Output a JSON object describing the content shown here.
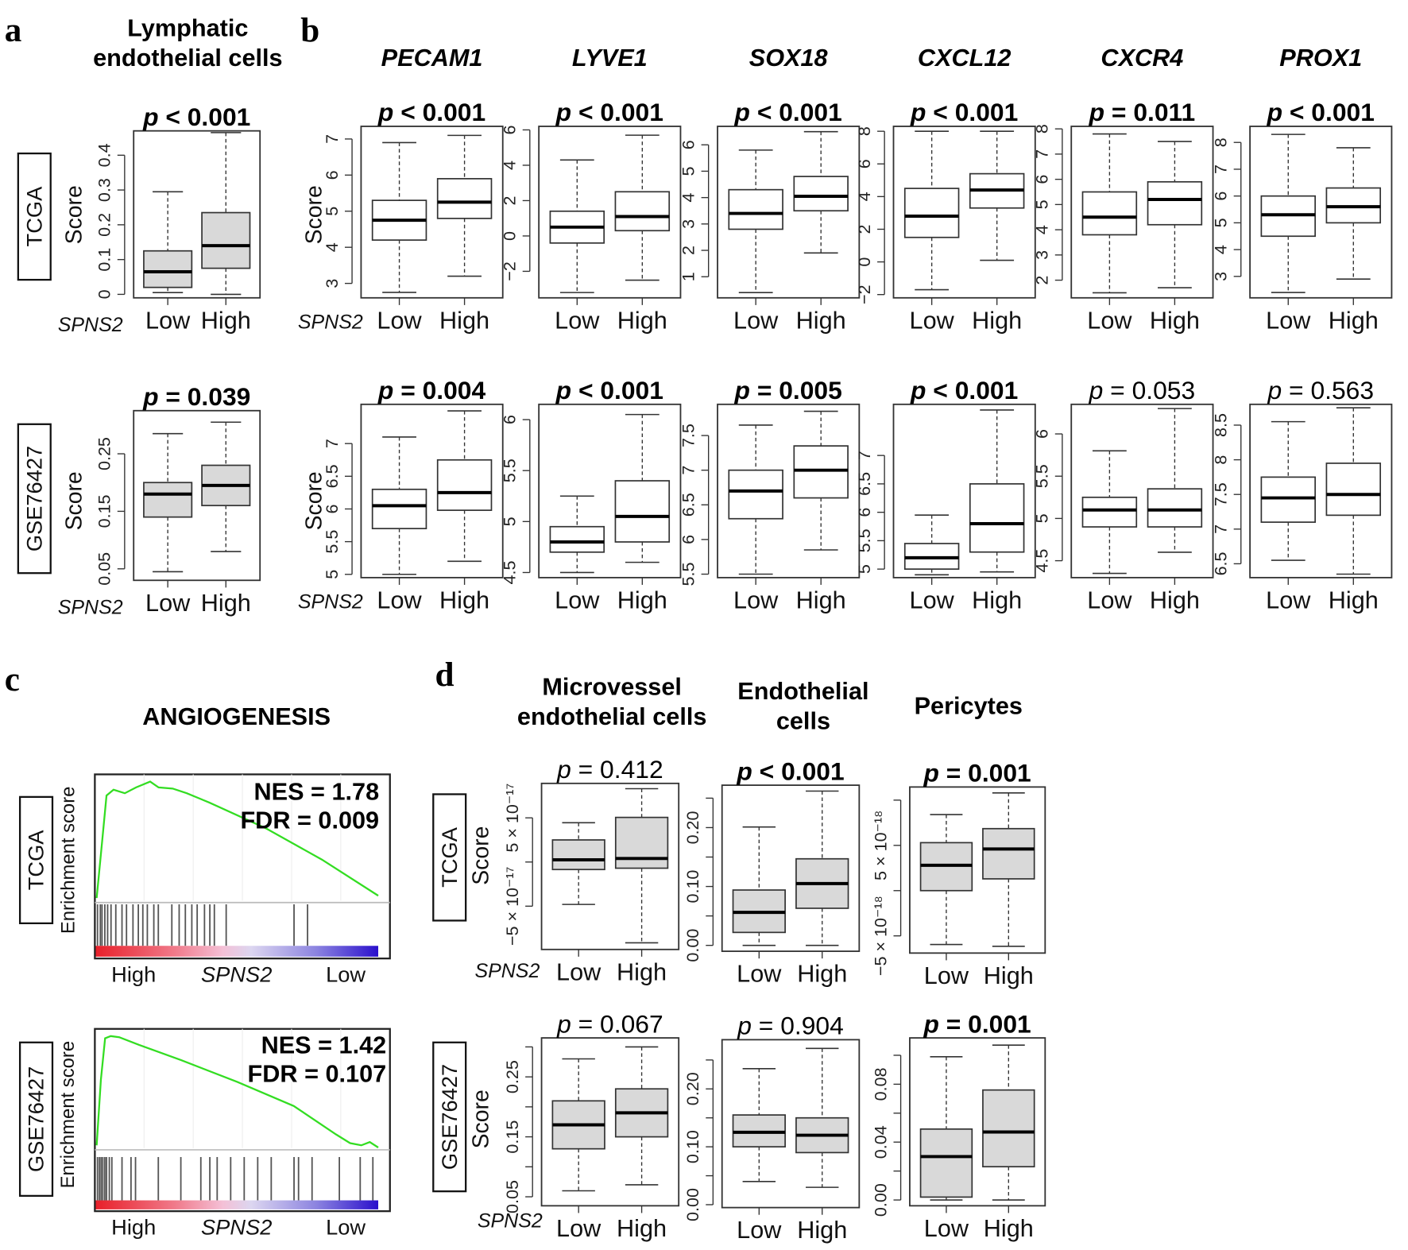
{
  "panels": {
    "a": {
      "letter": "a",
      "title": [
        "Lymphatic",
        "endothelial cells"
      ]
    },
    "b": {
      "letter": "b"
    },
    "c": {
      "letter": "c",
      "title": "ANGIOGENESIS"
    },
    "d": {
      "letter": "d",
      "titles": [
        [
          "Microvessel",
          "endothelial cells"
        ],
        [
          "Endothelial",
          "cells"
        ],
        [
          "Pericytes"
        ]
      ]
    }
  },
  "labels": {
    "datasets": [
      "TCGA",
      "GSE76427"
    ],
    "score": "Score",
    "enrichment_score": "Enrichment score",
    "group_var": "SPNS2",
    "low": "Low",
    "high": "High",
    "p": "p"
  },
  "colors": {
    "box_fill": "#d9d9d9",
    "es_line": "#33dd22",
    "gradient_high": "#e8202a",
    "gradient_low": "#2a10cc"
  },
  "gsea": [
    {
      "dataset": "TCGA",
      "nes": "NES = 1.78",
      "fdr": "FDR = 0.009",
      "es_curve": [
        [
          0,
          0
        ],
        [
          0.02,
          0.5
        ],
        [
          0.035,
          0.88
        ],
        [
          0.06,
          0.93
        ],
        [
          0.1,
          0.9
        ],
        [
          0.14,
          0.95
        ],
        [
          0.19,
          1.0
        ],
        [
          0.22,
          0.95
        ],
        [
          0.27,
          0.94
        ],
        [
          0.32,
          0.9
        ],
        [
          0.4,
          0.82
        ],
        [
          0.6,
          0.6
        ],
        [
          0.8,
          0.33
        ],
        [
          1.0,
          0.02
        ]
      ],
      "hits": [
        0.003,
        0.013,
        0.019,
        0.029,
        0.039,
        0.051,
        0.068,
        0.09,
        0.106,
        0.129,
        0.148,
        0.164,
        0.18,
        0.203,
        0.219,
        0.267,
        0.293,
        0.315,
        0.338,
        0.357,
        0.383,
        0.402,
        0.418,
        0.46,
        0.701,
        0.749
      ]
    },
    {
      "dataset": "GSE76427",
      "nes": "NES = 1.42",
      "fdr": "FDR = 0.107",
      "es_curve": [
        [
          0,
          0
        ],
        [
          0.015,
          0.6
        ],
        [
          0.03,
          0.98
        ],
        [
          0.05,
          1.0
        ],
        [
          0.08,
          0.99
        ],
        [
          0.15,
          0.92
        ],
        [
          0.3,
          0.78
        ],
        [
          0.5,
          0.58
        ],
        [
          0.7,
          0.36
        ],
        [
          0.85,
          0.1
        ],
        [
          0.9,
          0.02
        ],
        [
          0.94,
          0.0
        ],
        [
          0.97,
          0.03
        ],
        [
          1.0,
          -0.02
        ]
      ],
      "hits": [
        0.003,
        0.01,
        0.016,
        0.022,
        0.029,
        0.035,
        0.045,
        0.054,
        0.09,
        0.122,
        0.138,
        0.219,
        0.299,
        0.37,
        0.402,
        0.428,
        0.476,
        0.524,
        0.572,
        0.62,
        0.701,
        0.717,
        0.765,
        0.862,
        0.936,
        0.981
      ]
    }
  ],
  "chart_data": [
    {
      "id": "a-TCGA",
      "panel": "a",
      "title": "Lymphatic endothelial cells",
      "dataset": "TCGA",
      "type": "box",
      "p": "< 0.001",
      "bold": true,
      "ylim": [
        -0.01,
        0.47
      ],
      "yticks": [
        0,
        0.1,
        0.2,
        0.3,
        0.4
      ],
      "ytick_labels": [
        "0",
        "0.1",
        "0.2",
        "0.3",
        "0.4"
      ],
      "fill": true,
      "boxes": [
        {
          "name": "Low",
          "whislo": 0.005,
          "q1": 0.02,
          "med": 0.065,
          "q3": 0.125,
          "whishi": 0.295
        },
        {
          "name": "High",
          "whislo": 0.0,
          "q1": 0.075,
          "med": 0.14,
          "q3": 0.235,
          "whishi": 0.465
        }
      ]
    },
    {
      "id": "a-GSE",
      "panel": "a",
      "title": "Lymphatic endothelial cells",
      "dataset": "GSE76427",
      "type": "box",
      "p": "= 0.039",
      "bold": true,
      "ylim": [
        0.03,
        0.325
      ],
      "yticks": [
        0.05,
        0.15,
        0.25
      ],
      "ytick_labels": [
        "0.05",
        "0.15",
        "0.25"
      ],
      "fill": true,
      "boxes": [
        {
          "name": "Low",
          "whislo": 0.045,
          "q1": 0.14,
          "med": 0.18,
          "q3": 0.2,
          "whishi": 0.285
        },
        {
          "name": "High",
          "whislo": 0.08,
          "q1": 0.16,
          "med": 0.195,
          "q3": 0.23,
          "whishi": 0.305
        }
      ]
    },
    {
      "id": "b-PECAM1-TCGA",
      "panel": "b",
      "title": "PECAM1",
      "dataset": "TCGA",
      "type": "box",
      "p": "< 0.001",
      "bold": true,
      "ylim": [
        2.6,
        7.35
      ],
      "yticks": [
        3,
        4,
        5,
        6,
        7
      ],
      "ytick_labels": [
        "3",
        "4",
        "5",
        "6",
        "7"
      ],
      "boxes": [
        {
          "name": "Low",
          "whislo": 2.75,
          "q1": 4.2,
          "med": 4.75,
          "q3": 5.3,
          "whishi": 6.9
        },
        {
          "name": "High",
          "whislo": 3.2,
          "q1": 4.8,
          "med": 5.25,
          "q3": 5.9,
          "whishi": 7.1
        }
      ]
    },
    {
      "id": "b-LYVE1-TCGA",
      "panel": "b",
      "title": "LYVE1",
      "dataset": "TCGA",
      "type": "box",
      "p": "< 0.001",
      "bold": true,
      "ylim": [
        -3.5,
        6.2
      ],
      "yticks": [
        -2,
        0,
        2,
        4,
        6
      ],
      "ytick_labels": [
        "−2",
        "0",
        "2",
        "4",
        "6"
      ],
      "boxes": [
        {
          "name": "Low",
          "whislo": -3.2,
          "q1": -0.4,
          "med": 0.5,
          "q3": 1.4,
          "whishi": 4.3
        },
        {
          "name": "High",
          "whislo": -2.5,
          "q1": 0.3,
          "med": 1.1,
          "q3": 2.5,
          "whishi": 5.7
        }
      ]
    },
    {
      "id": "b-SOX18-TCGA",
      "panel": "b",
      "title": "SOX18",
      "dataset": "TCGA",
      "type": "box",
      "p": "< 0.001",
      "bold": true,
      "ylim": [
        0.2,
        6.7
      ],
      "yticks": [
        1,
        2,
        3,
        4,
        5,
        6
      ],
      "ytick_labels": [
        "1",
        "2",
        "3",
        "4",
        "5",
        "6"
      ],
      "boxes": [
        {
          "name": "Low",
          "whislo": 0.4,
          "q1": 2.8,
          "med": 3.4,
          "q3": 4.3,
          "whishi": 5.8
        },
        {
          "name": "High",
          "whislo": 1.9,
          "q1": 3.5,
          "med": 4.05,
          "q3": 4.8,
          "whishi": 6.5
        }
      ]
    },
    {
      "id": "b-CXCL12-TCGA",
      "panel": "b",
      "title": "CXCL12",
      "dataset": "TCGA",
      "type": "box",
      "p": "< 0.001",
      "bold": true,
      "ylim": [
        -2.2,
        8.3
      ],
      "yticks": [
        -2,
        0,
        2,
        4,
        6,
        8
      ],
      "ytick_labels": [
        "−2",
        "0",
        "2",
        "4",
        "6",
        "8"
      ],
      "boxes": [
        {
          "name": "Low",
          "whislo": -1.7,
          "q1": 1.5,
          "med": 2.8,
          "q3": 4.5,
          "whishi": 8.0
        },
        {
          "name": "High",
          "whislo": 0.1,
          "q1": 3.3,
          "med": 4.4,
          "q3": 5.4,
          "whishi": 8.0
        }
      ]
    },
    {
      "id": "b-CXCR4-TCGA",
      "panel": "b",
      "title": "CXCR4",
      "dataset": "TCGA",
      "type": "box",
      "p": "= 0.011",
      "bold": true,
      "ylim": [
        1.3,
        8.1
      ],
      "yticks": [
        2,
        3,
        4,
        5,
        6,
        7,
        8
      ],
      "ytick_labels": [
        "2",
        "3",
        "4",
        "5",
        "6",
        "7",
        "8"
      ],
      "boxes": [
        {
          "name": "Low",
          "whislo": 1.5,
          "q1": 3.8,
          "med": 4.5,
          "q3": 5.5,
          "whishi": 7.8
        },
        {
          "name": "High",
          "whislo": 1.7,
          "q1": 4.2,
          "med": 5.2,
          "q3": 5.9,
          "whishi": 7.5
        }
      ]
    },
    {
      "id": "b-PROX1-TCGA",
      "panel": "b",
      "title": "PROX1",
      "dataset": "TCGA",
      "type": "box",
      "p": "< 0.001",
      "bold": true,
      "ylim": [
        2.2,
        8.6
      ],
      "yticks": [
        3,
        4,
        5,
        6,
        7,
        8
      ],
      "ytick_labels": [
        "3",
        "4",
        "5",
        "6",
        "7",
        "8"
      ],
      "boxes": [
        {
          "name": "Low",
          "whislo": 2.4,
          "q1": 4.5,
          "med": 5.3,
          "q3": 6.0,
          "whishi": 8.3
        },
        {
          "name": "High",
          "whislo": 2.9,
          "q1": 5.0,
          "med": 5.6,
          "q3": 6.3,
          "whishi": 7.8
        }
      ]
    },
    {
      "id": "b-PECAM1-GSE",
      "panel": "b",
      "title": "PECAM1",
      "dataset": "GSE76427",
      "type": "box",
      "p": "= 0.004",
      "bold": true,
      "ylim": [
        4.95,
        7.6
      ],
      "yticks": [
        5,
        5.5,
        6,
        6.5,
        7
      ],
      "ytick_labels": [
        "5",
        "5.5",
        "6",
        "6.5",
        "7"
      ],
      "boxes": [
        {
          "name": "Low",
          "whislo": 5.0,
          "q1": 5.7,
          "med": 6.05,
          "q3": 6.3,
          "whishi": 7.1
        },
        {
          "name": "High",
          "whislo": 5.2,
          "q1": 5.98,
          "med": 6.25,
          "q3": 6.75,
          "whishi": 7.5
        }
      ]
    },
    {
      "id": "b-LYVE1-GSE",
      "panel": "b",
      "title": "LYVE1",
      "dataset": "GSE76427",
      "type": "box",
      "p": "< 0.001",
      "bold": true,
      "ylim": [
        4.45,
        6.15
      ],
      "yticks": [
        4.5,
        5,
        5.5,
        6
      ],
      "ytick_labels": [
        "4.5",
        "5",
        "5.5",
        "6"
      ],
      "boxes": [
        {
          "name": "Low",
          "whislo": 4.5,
          "q1": 4.7,
          "med": 4.8,
          "q3": 4.95,
          "whishi": 5.25
        },
        {
          "name": "High",
          "whislo": 4.6,
          "q1": 4.8,
          "med": 5.05,
          "q3": 5.4,
          "whishi": 6.05
        }
      ]
    },
    {
      "id": "b-SOX18-GSE",
      "panel": "b",
      "title": "SOX18",
      "dataset": "GSE76427",
      "type": "box",
      "p": "= 0.005",
      "bold": true,
      "ylim": [
        5.45,
        7.95
      ],
      "yticks": [
        5.5,
        6,
        6.5,
        7,
        7.5
      ],
      "ytick_labels": [
        "5.5",
        "6",
        "6.5",
        "7",
        "7.5"
      ],
      "boxes": [
        {
          "name": "Low",
          "whislo": 5.5,
          "q1": 6.3,
          "med": 6.7,
          "q3": 7.0,
          "whishi": 7.65
        },
        {
          "name": "High",
          "whislo": 5.85,
          "q1": 6.6,
          "med": 7.0,
          "q3": 7.35,
          "whishi": 7.85
        }
      ]
    },
    {
      "id": "b-CXCL12-GSE",
      "panel": "b",
      "title": "CXCL12",
      "dataset": "GSE76427",
      "type": "box",
      "p": "< 0.001",
      "bold": true,
      "ylim": [
        4.85,
        7.9
      ],
      "yticks": [
        5,
        5.5,
        6,
        6.5,
        7
      ],
      "ytick_labels": [
        "5",
        "5.5",
        "6",
        "6.5",
        "7"
      ],
      "boxes": [
        {
          "name": "Low",
          "whislo": 4.9,
          "q1": 5.0,
          "med": 5.2,
          "q3": 5.45,
          "whishi": 5.95
        },
        {
          "name": "High",
          "whislo": 4.95,
          "q1": 5.3,
          "med": 5.8,
          "q3": 6.5,
          "whishi": 7.8
        }
      ]
    },
    {
      "id": "b-CXCR4-GSE",
      "panel": "b",
      "title": "CXCR4",
      "dataset": "GSE76427",
      "type": "box",
      "p": "= 0.053",
      "bold": false,
      "ylim": [
        4.3,
        6.35
      ],
      "yticks": [
        4.5,
        5,
        5.5,
        6
      ],
      "ytick_labels": [
        "4.5",
        "5",
        "5.5",
        "6"
      ],
      "boxes": [
        {
          "name": "Low",
          "whislo": 4.35,
          "q1": 4.9,
          "med": 5.1,
          "q3": 5.25,
          "whishi": 5.8
        },
        {
          "name": "High",
          "whislo": 4.6,
          "q1": 4.9,
          "med": 5.1,
          "q3": 5.35,
          "whishi": 6.3
        }
      ]
    },
    {
      "id": "b-PROX1-GSE",
      "panel": "b",
      "title": "PROX1",
      "dataset": "GSE76427",
      "type": "box",
      "p": "= 0.563",
      "bold": false,
      "ylim": [
        6.3,
        8.8
      ],
      "yticks": [
        6.5,
        7,
        7.5,
        8,
        8.5
      ],
      "ytick_labels": [
        "6.5",
        "7",
        "7.5",
        "8",
        "8.5"
      ],
      "boxes": [
        {
          "name": "Low",
          "whislo": 6.55,
          "q1": 7.1,
          "med": 7.45,
          "q3": 7.75,
          "whishi": 8.55
        },
        {
          "name": "High",
          "whislo": 6.35,
          "q1": 7.2,
          "med": 7.5,
          "q3": 7.95,
          "whishi": 8.75
        }
      ]
    },
    {
      "id": "d-Micro-TCGA",
      "panel": "d",
      "title": "Microvessel endothelial cells",
      "dataset": "TCGA",
      "type": "box",
      "p": "= 0.412",
      "bold": false,
      "yunit": "×10^-17",
      "ylim": [
        -9.9,
        8.9
      ],
      "yticks": [
        -5,
        0,
        5
      ],
      "ytick_labels": [
        "−5 × 10⁻¹⁷",
        "",
        "5 × 10⁻¹⁷"
      ],
      "fill": true,
      "boxes": [
        {
          "name": "Low",
          "whislo": -4.8,
          "q1": -0.85,
          "med": 0.25,
          "q3": 2.5,
          "whishi": 4.45
        },
        {
          "name": "High",
          "whislo": -9.15,
          "q1": -0.7,
          "med": 0.4,
          "q3": 5.05,
          "whishi": 8.3
        }
      ]
    },
    {
      "id": "d-Endo-TCGA",
      "panel": "d",
      "title": "Endothelial cells",
      "dataset": "TCGA",
      "type": "box",
      "p": "< 0.001",
      "bold": true,
      "ylim": [
        -0.01,
        0.272
      ],
      "yticks": [
        0,
        0.05,
        0.1,
        0.15,
        0.2,
        0.25
      ],
      "ytick_labels": [
        "0.00",
        "",
        "0.10",
        "",
        "0.20",
        ""
      ],
      "fill": true,
      "boxes": [
        {
          "name": "Low",
          "whislo": 0.0,
          "q1": 0.022,
          "med": 0.056,
          "q3": 0.094,
          "whishi": 0.201
        },
        {
          "name": "High",
          "whislo": 0.0,
          "q1": 0.063,
          "med": 0.105,
          "q3": 0.147,
          "whishi": 0.262
        }
      ]
    },
    {
      "id": "d-Peri-TCGA",
      "panel": "d",
      "title": "Pericytes",
      "dataset": "TCGA",
      "type": "box",
      "p": "= 0.001",
      "bold": true,
      "yunit": "×10^-18",
      "ylim": [
        -6.9,
        11.45
      ],
      "yticks": [
        -5,
        0,
        5,
        10
      ],
      "ytick_labels": [
        "−5 × 10⁻¹⁸",
        "",
        "5 × 10⁻¹⁸",
        ""
      ],
      "fill": true,
      "boxes": [
        {
          "name": "Low",
          "whislo": -5.95,
          "q1": 0.0,
          "med": 2.8,
          "q3": 5.3,
          "whishi": 8.4
        },
        {
          "name": "High",
          "whislo": -6.15,
          "q1": 1.3,
          "med": 4.6,
          "q3": 6.85,
          "whishi": 10.8
        }
      ]
    },
    {
      "id": "d-Micro-GSE",
      "panel": "d",
      "title": "Microvessel endothelial cells",
      "dataset": "GSE76427",
      "type": "box",
      "p": "= 0.067",
      "bold": false,
      "ylim": [
        0.035,
        0.315
      ],
      "yticks": [
        0.05,
        0.1,
        0.15,
        0.2,
        0.25,
        0.3
      ],
      "ytick_labels": [
        "0.05",
        "",
        "0.15",
        "",
        "0.25",
        ""
      ],
      "fill": true,
      "boxes": [
        {
          "name": "Low",
          "whislo": 0.06,
          "q1": 0.13,
          "med": 0.17,
          "q3": 0.21,
          "whishi": 0.28
        },
        {
          "name": "High",
          "whislo": 0.07,
          "q1": 0.15,
          "med": 0.19,
          "q3": 0.23,
          "whishi": 0.3
        }
      ]
    },
    {
      "id": "d-Endo-GSE",
      "panel": "d",
      "title": "Endothelial cells",
      "dataset": "GSE76427",
      "type": "box",
      "p": "= 0.904",
      "bold": false,
      "ylim": [
        -0.005,
        0.285
      ],
      "yticks": [
        0,
        0.05,
        0.1,
        0.15,
        0.2,
        0.25
      ],
      "ytick_labels": [
        "0.00",
        "",
        "0.10",
        "",
        "0.20",
        ""
      ],
      "fill": true,
      "boxes": [
        {
          "name": "Low",
          "whislo": 0.04,
          "q1": 0.1,
          "med": 0.125,
          "q3": 0.155,
          "whishi": 0.235
        },
        {
          "name": "High",
          "whislo": 0.03,
          "q1": 0.09,
          "med": 0.12,
          "q3": 0.15,
          "whishi": 0.27
        }
      ]
    },
    {
      "id": "d-Peri-GSE",
      "panel": "d",
      "title": "Pericytes",
      "dataset": "GSE76427",
      "type": "box",
      "p": "= 0.001",
      "bold": true,
      "ylim": [
        -0.004,
        0.112
      ],
      "yticks": [
        0,
        0.02,
        0.04,
        0.06,
        0.08,
        0.1
      ],
      "ytick_labels": [
        "0.00",
        "",
        "0.04",
        "",
        "0.08",
        ""
      ],
      "fill": true,
      "boxes": [
        {
          "name": "Low",
          "whislo": 0.0,
          "q1": 0.002,
          "med": 0.03,
          "q3": 0.049,
          "whishi": 0.099
        },
        {
          "name": "High",
          "whislo": 0.0,
          "q1": 0.023,
          "med": 0.047,
          "q3": 0.076,
          "whishi": 0.107
        }
      ]
    }
  ]
}
